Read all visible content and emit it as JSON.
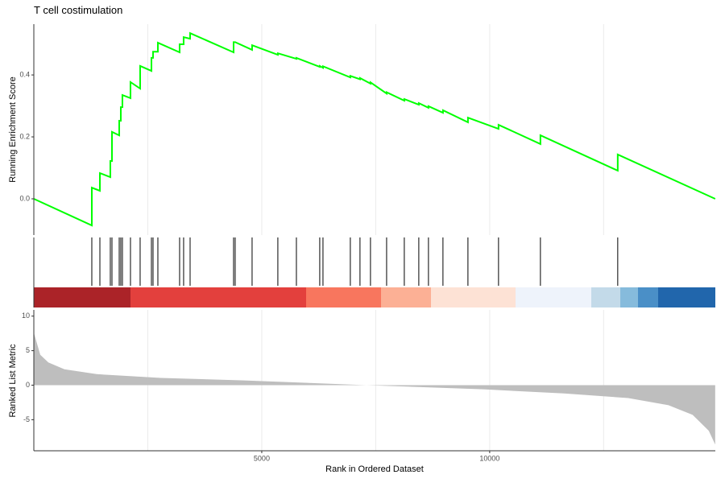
{
  "chart_data": [
    {
      "type": "line",
      "title": "T cell costimulation",
      "ylabel": "Running Enrichment Score",
      "x": [
        0,
        1272,
        1272,
        1449,
        1449,
        1678,
        1678,
        1714,
        1714,
        1873,
        1873,
        1908,
        1908,
        1943,
        1943,
        2120,
        2120,
        2332,
        2332,
        2580,
        2580,
        2615,
        2615,
        2721,
        2721,
        3198,
        3198,
        3286,
        3286,
        3428,
        3428,
        4382,
        4382,
        4417,
        4788,
        4788,
        5353,
        5353,
        5760,
        5760,
        6272,
        6272,
        6343,
        6343,
        6943,
        6943,
        7155,
        7155,
        7385,
        7385,
        7739,
        7739,
        8127,
        8127,
        8445,
        8445,
        8657,
        8657,
        8975,
        8975,
        9523,
        9523,
        10194,
        10194,
        11113,
        11113,
        12809,
        12809,
        14947
      ],
      "values": [
        0,
        -0.086,
        0.036,
        0.026,
        0.083,
        0.07,
        0.122,
        0.122,
        0.216,
        0.205,
        0.252,
        0.252,
        0.296,
        0.296,
        0.335,
        0.325,
        0.377,
        0.356,
        0.429,
        0.413,
        0.455,
        0.455,
        0.475,
        0.475,
        0.504,
        0.473,
        0.499,
        0.499,
        0.522,
        0.517,
        0.535,
        0.473,
        0.506,
        0.506,
        0.481,
        0.496,
        0.465,
        0.47,
        0.452,
        0.455,
        0.426,
        0.429,
        0.423,
        0.428,
        0.392,
        0.397,
        0.386,
        0.39,
        0.372,
        0.376,
        0.34,
        0.344,
        0.317,
        0.322,
        0.304,
        0.309,
        0.294,
        0.299,
        0.278,
        0.286,
        0.247,
        0.262,
        0.226,
        0.239,
        0.177,
        0.205,
        0.091,
        0.143,
        0
      ],
      "color": "#00ff00",
      "xlim": [
        0,
        14950
      ],
      "ylim": [
        -0.117,
        0.564
      ],
      "yticks": [
        {
          "value": 0,
          "label": "0.0"
        },
        0.2,
        0.4
      ],
      "xgrid": [
        2500,
        5000,
        7500,
        10000,
        12500
      ]
    },
    {
      "type": "rug",
      "x": [
        1272,
        1449,
        1678,
        1714,
        1873,
        1908,
        1943,
        2120,
        2332,
        2580,
        2615,
        2721,
        3198,
        3286,
        3428,
        4382,
        4417,
        4788,
        5353,
        5760,
        6272,
        6343,
        6943,
        7155,
        7385,
        7739,
        8127,
        8445,
        8657,
        8975,
        9523,
        10194,
        11113,
        12809
      ],
      "color": "#000000",
      "xlim": [
        0,
        14950
      ]
    },
    {
      "type": "area",
      "xlabel": "Rank in Ordered Dataset",
      "ylabel": "Ranked List Metric",
      "x": [
        0,
        141,
        318,
        671,
        1378,
        2792,
        4558,
        7297,
        9859,
        11625,
        13038,
        13922,
        14452,
        14806,
        14947
      ],
      "values": [
        7.6,
        4.4,
        3.3,
        2.3,
        1.6,
        1.05,
        0.7,
        0,
        -0.6,
        -1.2,
        -1.86,
        -2.9,
        -4.3,
        -6.6,
        -8.6
      ],
      "color": "#bebebe",
      "xlim": [
        0,
        14950
      ],
      "ylim": [
        -9.5,
        10.9
      ],
      "yticks": [
        10,
        5,
        0,
        -5
      ],
      "xticks": [
        5000,
        10000
      ],
      "xgrid": [
        2500,
        5000,
        7500,
        10000,
        12500
      ]
    }
  ]
}
